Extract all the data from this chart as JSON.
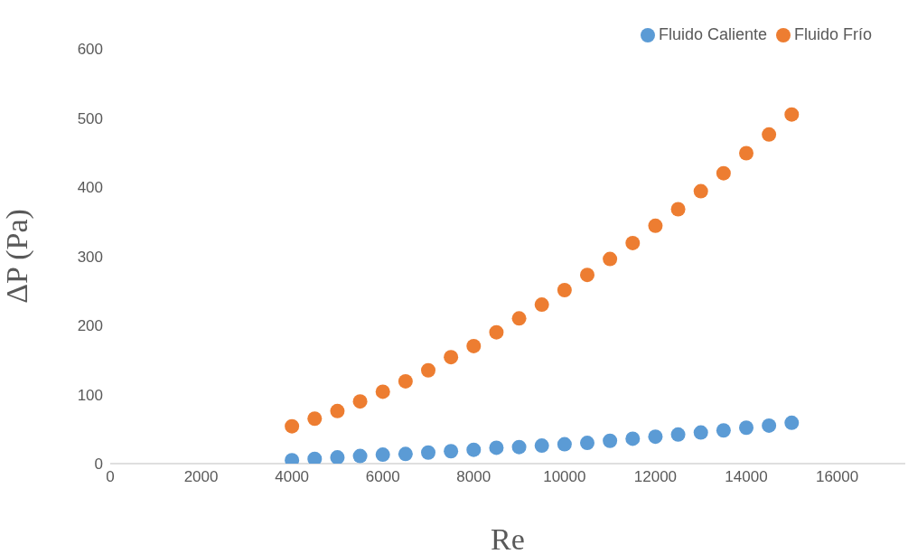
{
  "chart_data": {
    "type": "scatter",
    "xlabel": "Re",
    "ylabel": "ΔP (Pa)",
    "xlim": [
      0,
      17500
    ],
    "xticks": [
      0,
      2000,
      4000,
      6000,
      8000,
      10000,
      12000,
      14000,
      16000
    ],
    "ylim": [
      0,
      600
    ],
    "yticks": [
      0,
      100,
      200,
      300,
      400,
      500,
      600
    ],
    "x": [
      4000,
      4500,
      5000,
      5500,
      6000,
      6500,
      7000,
      7500,
      8000,
      8500,
      9000,
      9500,
      10000,
      10500,
      11000,
      11500,
      12000,
      12500,
      13000,
      13500,
      14000,
      14500,
      15000
    ],
    "series": [
      {
        "name": "Fluido Caliente",
        "color": "#5b9bd5",
        "values": [
          5,
          7,
          9,
          11,
          13,
          14,
          16,
          18,
          20,
          23,
          24,
          26,
          28,
          30,
          33,
          36,
          39,
          42,
          45,
          48,
          52,
          55,
          59
        ]
      },
      {
        "name": "Fluido Frío",
        "color": "#ed7d31",
        "values": [
          54,
          65,
          76,
          90,
          104,
          119,
          135,
          154,
          170,
          190,
          210,
          230,
          251,
          273,
          296,
          319,
          344,
          368,
          394,
          420,
          449,
          476,
          505
        ]
      }
    ],
    "legend": "top right",
    "marker": "circle"
  }
}
